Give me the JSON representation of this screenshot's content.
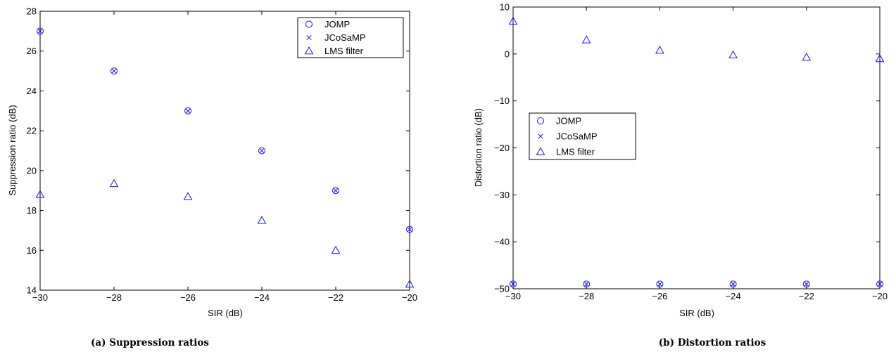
{
  "chart_data": [
    {
      "type": "scatter",
      "caption": "(a) Suppression ratios",
      "xlabel": "SIR (dB)",
      "ylabel": "Suppression ratio (dB)",
      "xlim": [
        -30,
        -20
      ],
      "ylim": [
        14,
        28
      ],
      "xticks": [
        -30,
        -28,
        -26,
        -24,
        -22,
        -20
      ],
      "yticks": [
        14,
        16,
        18,
        20,
        22,
        24,
        26,
        28
      ],
      "legend_position": "top-right",
      "color": "#1414ff",
      "x": [
        -30,
        -28,
        -26,
        -24,
        -22,
        -20
      ],
      "series": [
        {
          "name": "JOMP",
          "marker": "circle",
          "values": [
            27.0,
            25.0,
            23.0,
            21.0,
            19.0,
            17.05
          ]
        },
        {
          "name": "JCoSaMP",
          "marker": "x",
          "values": [
            27.0,
            25.0,
            23.0,
            21.0,
            19.0,
            17.05
          ]
        },
        {
          "name": "LMS filter",
          "marker": "triangle",
          "values": [
            18.8,
            19.35,
            18.7,
            17.5,
            16.0,
            14.3
          ]
        }
      ]
    },
    {
      "type": "scatter",
      "caption": "(b) Distortion ratios",
      "xlabel": "SIR (dB)",
      "ylabel": "Distortion ratio (dB)",
      "xlim": [
        -30,
        -20
      ],
      "ylim": [
        -50,
        10
      ],
      "xticks": [
        -30,
        -28,
        -26,
        -24,
        -22,
        -20
      ],
      "yticks": [
        -50,
        -40,
        -30,
        -20,
        -10,
        0,
        10
      ],
      "legend_position": "middle-left",
      "color": "#1414ff",
      "x": [
        -30,
        -28,
        -26,
        -24,
        -22,
        -20
      ],
      "series": [
        {
          "name": "JOMP",
          "marker": "circle",
          "values": [
            -49,
            -49,
            -49,
            -49,
            -49,
            -49
          ]
        },
        {
          "name": "JCoSaMP",
          "marker": "x",
          "values": [
            -49,
            -49,
            -49,
            -49,
            -49,
            -49
          ]
        },
        {
          "name": "LMS filter",
          "marker": "triangle",
          "values": [
            7.0,
            3.0,
            0.8,
            -0.2,
            -0.7,
            -1.0
          ]
        }
      ]
    }
  ]
}
